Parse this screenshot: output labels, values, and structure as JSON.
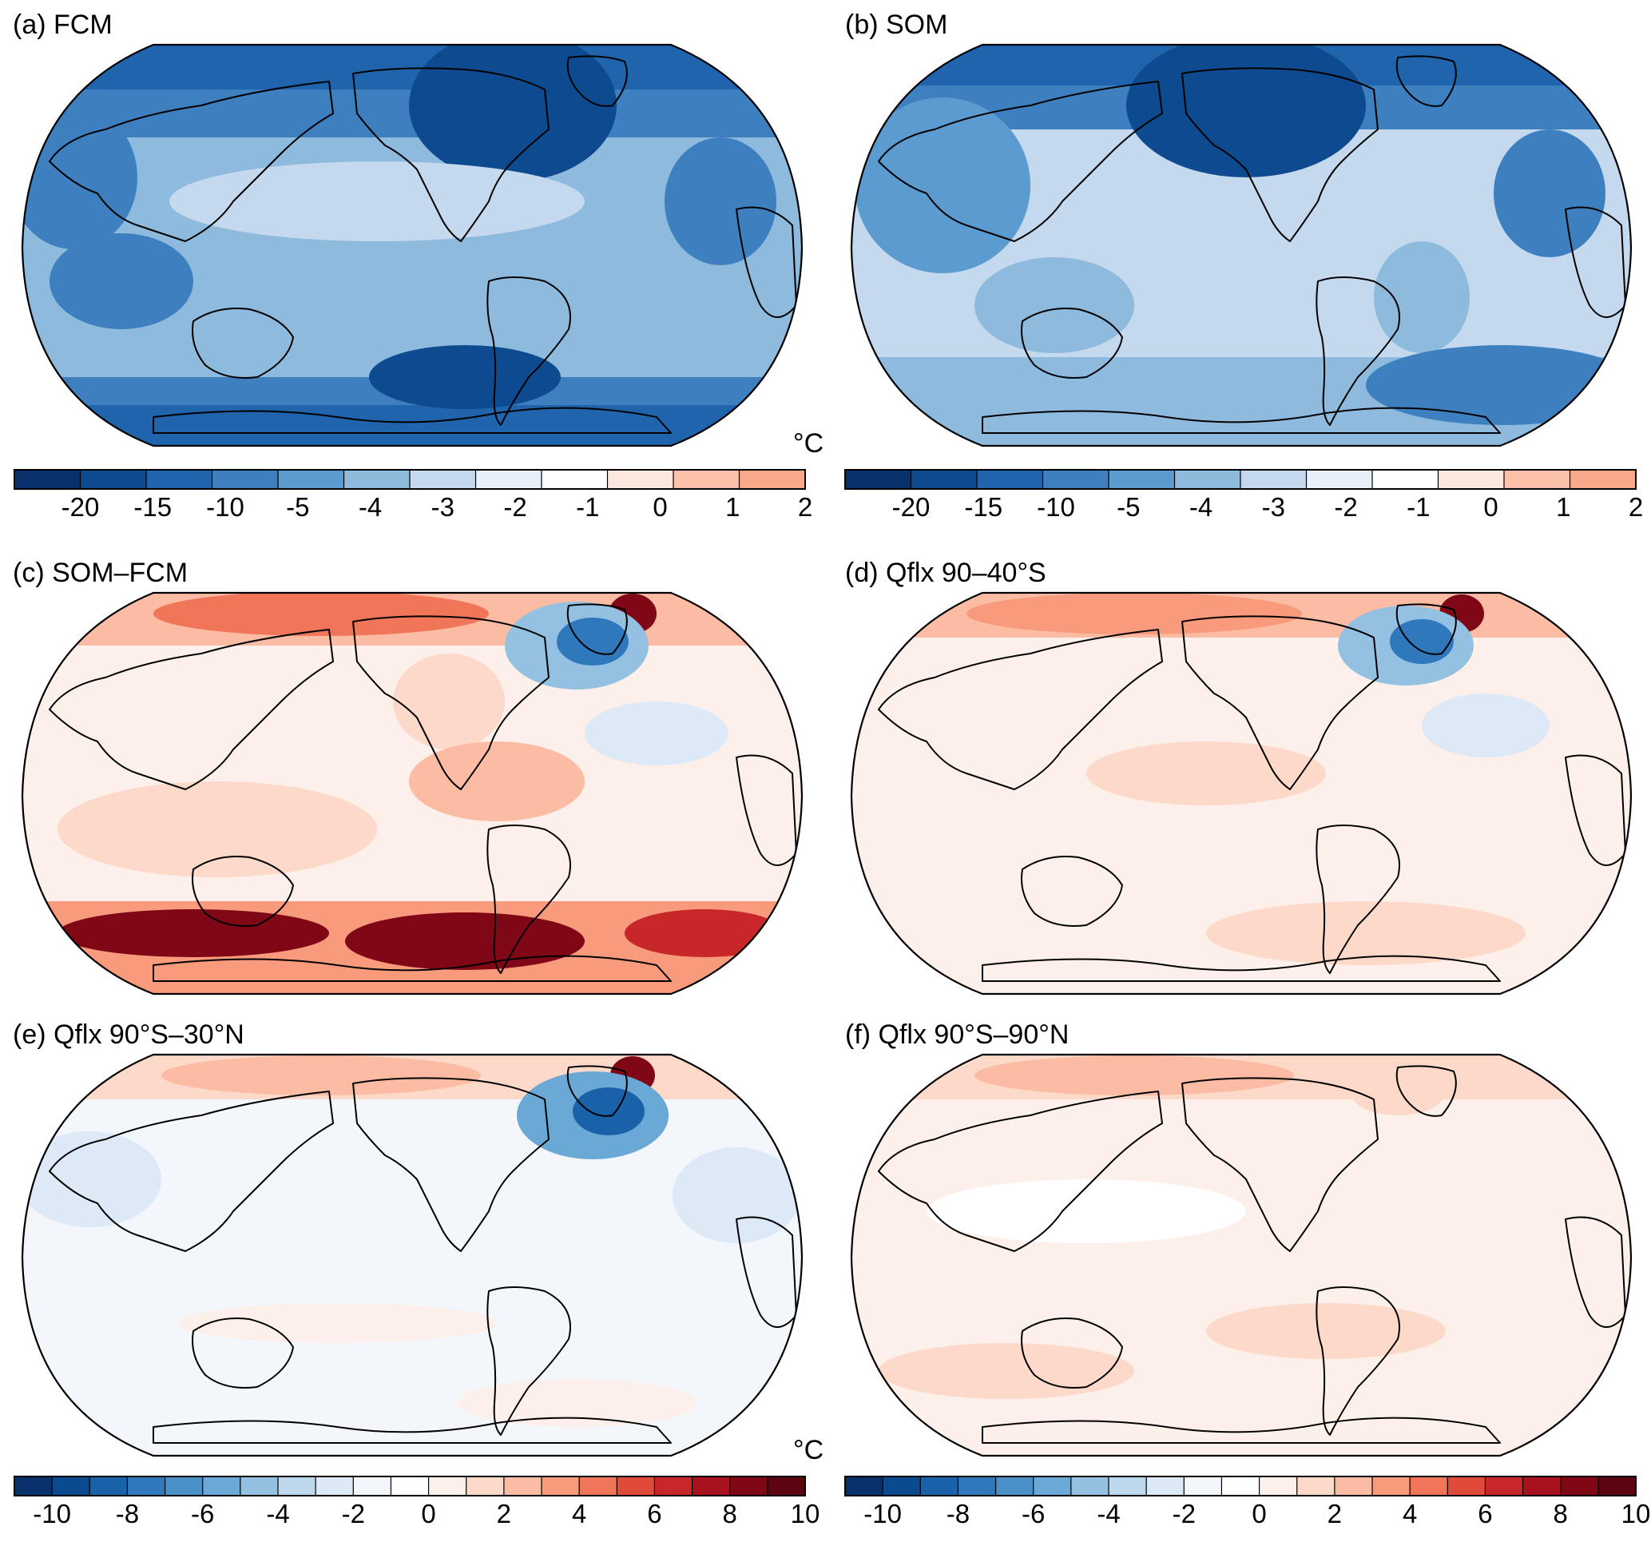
{
  "panels": [
    {
      "id": "a",
      "title": "(a) FCM",
      "field": "fcm"
    },
    {
      "id": "b",
      "title": "(b) SOM",
      "field": "som"
    },
    {
      "id": "c",
      "title": "(c) SOM–FCM",
      "field": "diff_full"
    },
    {
      "id": "d",
      "title": "(d) Qflx 90–40°S",
      "field": "diff_south"
    },
    {
      "id": "e",
      "title": "(e) Qflx 90°S–30°N",
      "field": "diff_south_north30"
    },
    {
      "id": "f",
      "title": "(f) Qflx 90°S–90°N",
      "field": "diff_global"
    }
  ],
  "colorbars": {
    "top": {
      "unit": "°C",
      "tick_labels": [
        "-20",
        "-15",
        "-10",
        "-5",
        "-4",
        "-3",
        "-2",
        "-1",
        "0",
        "1",
        "2"
      ],
      "colors": [
        "#08306b",
        "#0d4a8f",
        "#1f64ad",
        "#3d7fbf",
        "#5b9bcf",
        "#8dbadd",
        "#c5d9ee",
        "#e7f0f9",
        "#ffffff",
        "#fde8df",
        "#fbc2a9",
        "#f8a98a"
      ]
    },
    "bottom": {
      "unit": "°C",
      "tick_labels": [
        "-10",
        "-8",
        "-6",
        "-4",
        "-2",
        "0",
        "2",
        "4",
        "6",
        "8",
        "10"
      ],
      "colors": [
        "#08306b",
        "#0c4a90",
        "#1962a9",
        "#2f78bb",
        "#4a90c8",
        "#6aa8d6",
        "#94c1e2",
        "#bdd7ed",
        "#dde9f6",
        "#f3f7fc",
        "#ffffff",
        "#fdf0ea",
        "#fcd9c9",
        "#fbbca3",
        "#f89a7c",
        "#f07559",
        "#e04a3a",
        "#c8272a",
        "#a8111e",
        "#800716",
        "#5c0510"
      ]
    }
  }
}
